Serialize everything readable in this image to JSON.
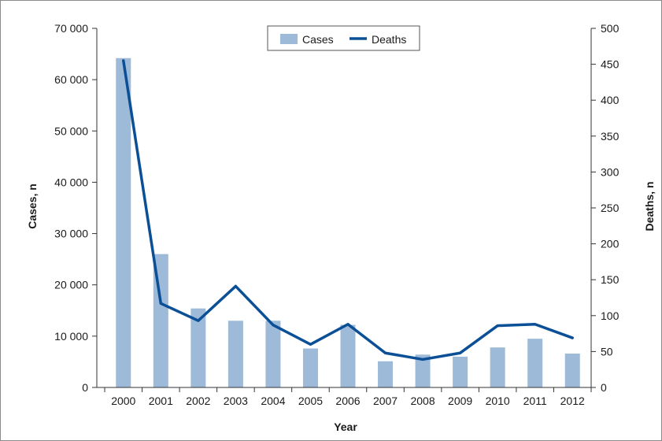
{
  "chart_data": {
    "type": "bar",
    "categories": [
      "2000",
      "2001",
      "2002",
      "2003",
      "2004",
      "2005",
      "2006",
      "2007",
      "2008",
      "2009",
      "2010",
      "2011",
      "2012"
    ],
    "series": [
      {
        "name": "Cases",
        "type": "bar",
        "axis": "left",
        "values": [
          64200,
          26000,
          15400,
          13000,
          13000,
          7600,
          12200,
          5100,
          6400,
          6000,
          7800,
          9500,
          6600
        ]
      },
      {
        "name": "Deaths",
        "type": "line",
        "axis": "right",
        "values": [
          455,
          117,
          93,
          141,
          87,
          60,
          88,
          48,
          39,
          48,
          86,
          88,
          69
        ]
      }
    ],
    "xlabel": "Year",
    "ylabel_left": "Cases, n",
    "ylabel_right": "Deaths, n",
    "ylim_left": [
      0,
      70000
    ],
    "ylim_right": [
      0,
      500
    ],
    "yticks_left": [
      "0",
      "10 000",
      "20 000",
      "30 000",
      "40 000",
      "50 000",
      "60 000",
      "70 000"
    ],
    "yticks_right": [
      "0",
      "50",
      "100",
      "150",
      "200",
      "250",
      "300",
      "350",
      "400",
      "450",
      "500"
    ],
    "legend_position": "top-center",
    "grid": false,
    "colors": {
      "bar": "#9dbad9",
      "line": "#0b4f96",
      "axis": "#333333"
    }
  }
}
